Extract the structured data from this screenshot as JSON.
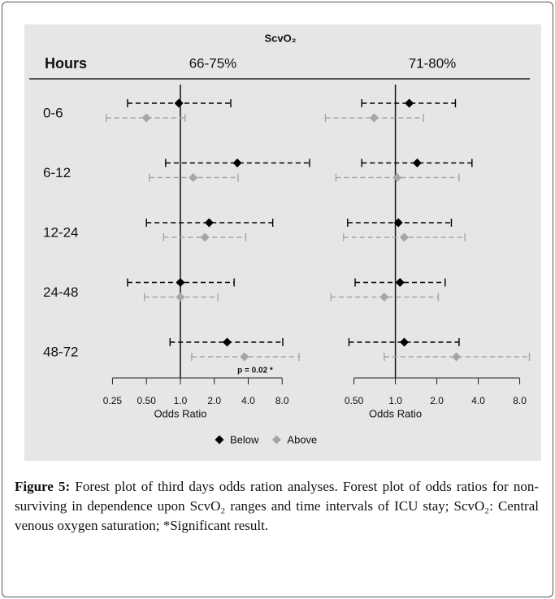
{
  "header": {
    "title": "ScvO₂",
    "row_label": "Hours"
  },
  "chart_data": [
    {
      "type": "forest",
      "title": "66-75%",
      "x_label": "Odds Ratio",
      "log_x": true,
      "reference": 1,
      "categories": [
        "0-6",
        "6-12",
        "12-24",
        "24-48",
        "48-72"
      ],
      "xlim": [
        0.2,
        16
      ],
      "xticks": [
        0.25,
        {
          "value": 0.5,
          "label": "0.50"
        },
        {
          "value": 1,
          "label": "1.0"
        },
        {
          "value": 2,
          "label": "2.0"
        },
        {
          "value": 4,
          "label": "4.0"
        },
        {
          "value": 8,
          "label": "8.0"
        }
      ],
      "series": [
        {
          "name": "Below",
          "color": "#000000",
          "values": [
            0.97,
            3.2,
            1.8,
            1.0,
            2.6
          ],
          "lower": [
            0.34,
            0.74,
            0.5,
            0.34,
            0.81
          ],
          "upper": [
            2.8,
            14,
            6.6,
            3.0,
            8.1
          ]
        },
        {
          "name": "Above",
          "color": "#a6a6a6",
          "values": [
            0.5,
            1.3,
            1.65,
            1.0,
            3.7
          ],
          "lower": [
            0.22,
            0.53,
            0.71,
            0.48,
            1.26
          ],
          "upper": [
            1.1,
            3.25,
            3.8,
            2.15,
            11.3
          ]
        }
      ],
      "annotations": [
        {
          "text": "p = 0.02 *",
          "row": 4
        }
      ],
      "legend": "bottom"
    },
    {
      "type": "forest",
      "title": "71-80%",
      "x_label": "Odds Ratio",
      "log_x": true,
      "reference": 1,
      "xlim": [
        0.3,
        10
      ],
      "xticks": [
        {
          "value": 0.5,
          "label": "0.50"
        },
        {
          "value": 1,
          "label": "1.0"
        },
        {
          "value": 2,
          "label": "2.0"
        },
        {
          "value": 4,
          "label": "4.0"
        },
        {
          "value": 8,
          "label": "8.0"
        }
      ],
      "series": [
        {
          "color": "#000000",
          "values": [
            1.26,
            1.44,
            1.05,
            1.08,
            1.16
          ],
          "lower": [
            0.57,
            0.57,
            0.45,
            0.51,
            0.46
          ],
          "upper": [
            2.73,
            3.6,
            2.55,
            2.3,
            2.9
          ]
        },
        {
          "color": "#a6a6a6",
          "values": [
            0.7,
            1.03,
            1.16,
            0.83,
            2.77
          ],
          "lower": [
            0.31,
            0.37,
            0.42,
            0.34,
            0.83
          ],
          "upper": [
            1.6,
            2.9,
            3.2,
            2.05,
            9.4
          ]
        }
      ]
    }
  ],
  "caption": {
    "label": "Figure 5:",
    "text": "Forest plot of third days odds ration analyses. Forest plot of odds ratios for non-surviving in dependence upon ScvO₂ ranges and time intervals of ICU stay; ScvO₂: Central venous oxygen saturation; *Significant result."
  }
}
